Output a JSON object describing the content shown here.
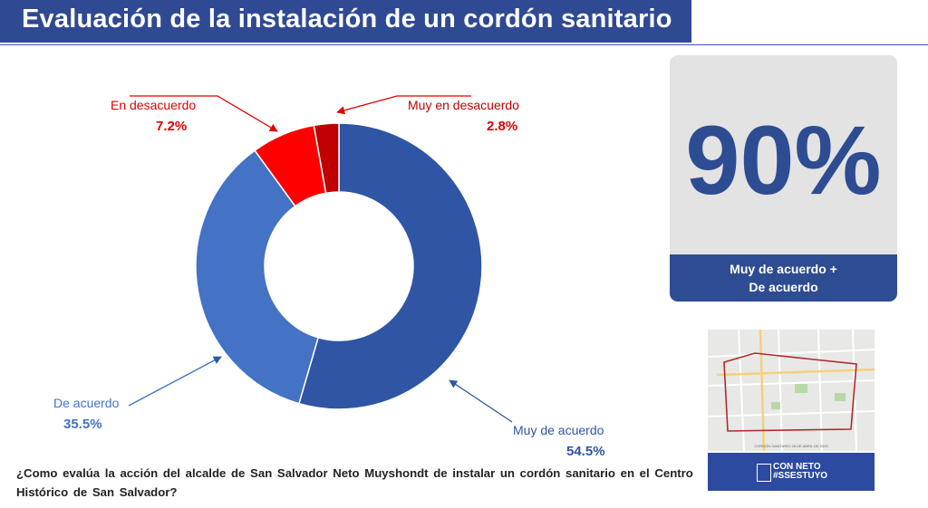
{
  "title": "Evaluación de la instalación de un cordón sanitario",
  "chart_data": {
    "type": "pie",
    "categories": [
      "Muy de acuerdo",
      "De acuerdo",
      "En desacuerdo",
      "Muy en desacuerdo"
    ],
    "values": [
      54.5,
      35.5,
      7.2,
      2.8
    ],
    "value_labels": [
      "54.5%",
      "35.5%",
      "7.2%",
      "2.8%"
    ],
    "colors": [
      "#2f55a4",
      "#4472c4",
      "#ff0000",
      "#c00000"
    ],
    "title": "",
    "hole": "donut"
  },
  "summary": {
    "value": "90%",
    "caption_line1": "Muy de acuerdo +",
    "caption_line2": "De acuerdo"
  },
  "map": {
    "caption": "CORDÓN SANITARIO 28 DE ABRIL DE 2020"
  },
  "brand": {
    "line1": "CON NETO",
    "line2": "#SSESTUYO"
  },
  "question": "¿Como evalúa la acción del alcalde de San Salvador Neto Muyshondt de instalar un cordón sanitario en el Centro Histórico de San Salvador?"
}
